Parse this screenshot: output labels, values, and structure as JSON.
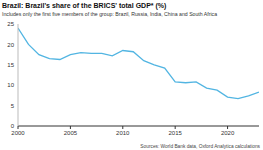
{
  "chart_data": {
    "type": "line",
    "title": "Brazil: Brazil's share of the BRICS' total GDP* (%)",
    "subtitle": "Includes only the first five members of the group: Brazil, Russia, India, China and South Africa",
    "source": "Sources: World Bank data, Oxford Analytica calculations",
    "x": [
      2000,
      2001,
      2002,
      2003,
      2004,
      2005,
      2006,
      2007,
      2008,
      2009,
      2010,
      2011,
      2012,
      2013,
      2014,
      2015,
      2016,
      2017,
      2018,
      2019,
      2020,
      2021,
      2022,
      2023
    ],
    "series": [
      {
        "name": "Brazil's share",
        "color": "#52b5e2",
        "values": [
          24,
          20,
          17.5,
          16.5,
          16.3,
          17.5,
          18,
          17.8,
          17.8,
          17.2,
          18.5,
          18.2,
          16,
          15,
          14.2,
          10.8,
          10.6,
          10.8,
          9.3,
          8.8,
          7.1,
          6.7,
          7.4,
          8.3
        ]
      }
    ],
    "xlim": [
      2000,
      2023
    ],
    "xticks": [
      2000,
      2005,
      2010,
      2015,
      2020
    ],
    "ylim": [
      0,
      25
    ],
    "yticks": [
      0,
      5,
      10,
      15,
      20,
      25
    ],
    "grid": false
  }
}
